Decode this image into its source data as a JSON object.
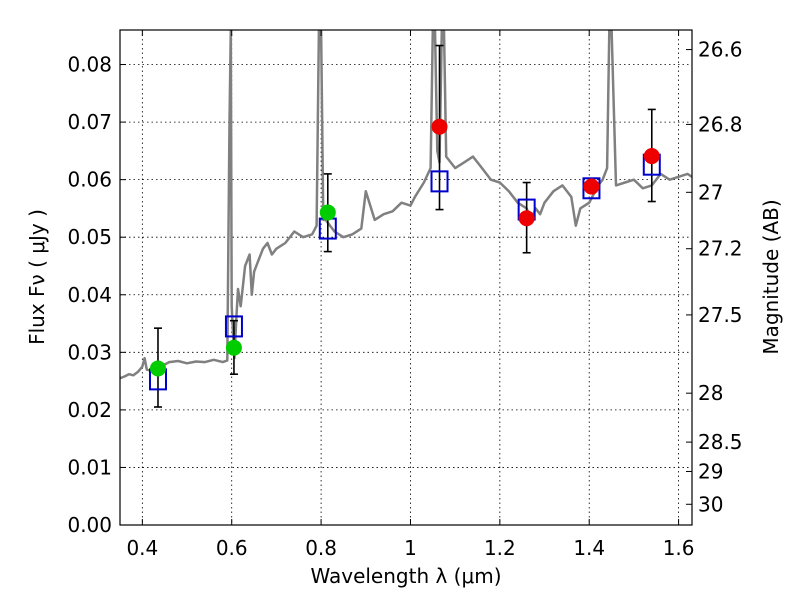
{
  "chart_data": {
    "type": "scatter",
    "xlabel": "Wavelength  λ (μm)",
    "ylabel": "Flux  Fν  ( μJy )",
    "y2label": "Magnitude (AB)",
    "xlim": [
      0.35,
      1.63
    ],
    "ylim": [
      0.0,
      0.086
    ],
    "x_ticks": [
      0.4,
      0.6,
      0.8,
      1.0,
      1.2,
      1.4,
      1.6
    ],
    "x_tick_labels": [
      "0.4",
      "0.6",
      "0.8",
      "1",
      "1.2",
      "1.4",
      "1.6"
    ],
    "y_ticks": [
      0.0,
      0.01,
      0.02,
      0.03,
      0.04,
      0.05,
      0.06,
      0.07,
      0.08
    ],
    "y_tick_labels": [
      "0.00",
      "0.01",
      "0.02",
      "0.03",
      "0.04",
      "0.05",
      "0.06",
      "0.07",
      "0.08"
    ],
    "y2_ticks": [
      {
        "label": "26.6",
        "flux": 0.0826
      },
      {
        "label": "26.8",
        "flux": 0.0696
      },
      {
        "label": "27",
        "flux": 0.0578
      },
      {
        "label": "27.2",
        "flux": 0.048
      },
      {
        "label": "27.5",
        "flux": 0.0365
      },
      {
        "label": "28",
        "flux": 0.0229
      },
      {
        "label": "28.5",
        "flux": 0.0144
      },
      {
        "label": "29",
        "flux": 0.0093
      },
      {
        "label": "30",
        "flux": 0.0036
      }
    ],
    "grid": true,
    "series": [
      {
        "style": "line",
        "color": "#808080",
        "x": [
          0.35,
          0.36,
          0.37,
          0.38,
          0.39,
          0.4,
          0.405,
          0.41,
          0.42,
          0.43,
          0.44,
          0.46,
          0.48,
          0.5,
          0.52,
          0.54,
          0.56,
          0.58,
          0.59,
          0.595,
          0.598,
          0.6,
          0.603,
          0.606,
          0.61,
          0.614,
          0.62,
          0.63,
          0.64,
          0.645,
          0.65,
          0.66,
          0.67,
          0.68,
          0.69,
          0.7,
          0.72,
          0.74,
          0.76,
          0.78,
          0.79,
          0.795,
          0.8,
          0.805,
          0.81,
          0.83,
          0.85,
          0.87,
          0.89,
          0.9,
          0.92,
          0.94,
          0.96,
          0.98,
          1.0,
          1.01,
          1.03,
          1.045,
          1.05,
          1.055,
          1.06,
          1.065,
          1.07,
          1.075,
          1.08,
          1.1,
          1.12,
          1.14,
          1.16,
          1.18,
          1.2,
          1.22,
          1.24,
          1.26,
          1.27,
          1.28,
          1.29,
          1.3,
          1.32,
          1.34,
          1.36,
          1.37,
          1.38,
          1.4,
          1.42,
          1.43,
          1.44,
          1.445,
          1.45,
          1.46,
          1.48,
          1.5,
          1.52,
          1.54,
          1.56,
          1.58,
          1.6,
          1.62,
          1.63
        ],
        "y": [
          0.0255,
          0.0258,
          0.0262,
          0.026,
          0.0266,
          0.0275,
          0.029,
          0.027,
          0.0268,
          0.0272,
          0.0275,
          0.0283,
          0.0285,
          0.0281,
          0.0284,
          0.0283,
          0.0287,
          0.0283,
          0.0286,
          0.07,
          0.086,
          0.038,
          0.033,
          0.029,
          0.0355,
          0.041,
          0.038,
          0.045,
          0.047,
          0.04,
          0.044,
          0.046,
          0.048,
          0.049,
          0.047,
          0.048,
          0.049,
          0.051,
          0.05,
          0.0505,
          0.052,
          0.086,
          0.086,
          0.053,
          0.053,
          0.051,
          0.05,
          0.0505,
          0.0515,
          0.058,
          0.053,
          0.054,
          0.0545,
          0.056,
          0.0555,
          0.057,
          0.0595,
          0.062,
          0.086,
          0.086,
          0.065,
          0.063,
          0.086,
          0.086,
          0.064,
          0.062,
          0.063,
          0.064,
          0.062,
          0.06,
          0.0595,
          0.058,
          0.056,
          0.055,
          0.053,
          0.055,
          0.054,
          0.056,
          0.058,
          0.059,
          0.057,
          0.052,
          0.055,
          0.056,
          0.059,
          0.06,
          0.062,
          0.086,
          0.086,
          0.059,
          0.0595,
          0.06,
          0.0585,
          0.059,
          0.061,
          0.06,
          0.0605,
          0.061,
          0.0605
        ]
      },
      {
        "style": "open-square",
        "color": "#0000cc",
        "x": [
          0.435,
          0.605,
          0.815,
          1.065,
          1.26,
          1.405,
          1.54
        ],
        "y": [
          0.0253,
          0.0345,
          0.0515,
          0.0597,
          0.0548,
          0.0585,
          0.0626
        ]
      },
      {
        "style": "filled-circle",
        "color": "#00cc00",
        "x": [
          0.435,
          0.605,
          0.815
        ],
        "y": [
          0.0272,
          0.0308,
          0.0543
        ],
        "yerr_low": [
          0.0205,
          0.0262,
          0.0475
        ],
        "yerr_high": [
          0.0342,
          0.0355,
          0.061
        ]
      },
      {
        "style": "filled-circle",
        "color": "#ee0000",
        "x": [
          1.065,
          1.26,
          1.405,
          1.54
        ],
        "y": [
          0.0692,
          0.0533,
          0.0588,
          0.0641
        ],
        "yerr_low": [
          0.0548,
          0.0473,
          null,
          0.0562
        ],
        "yerr_high": [
          0.0833,
          0.0595,
          null,
          0.0722
        ]
      }
    ]
  }
}
